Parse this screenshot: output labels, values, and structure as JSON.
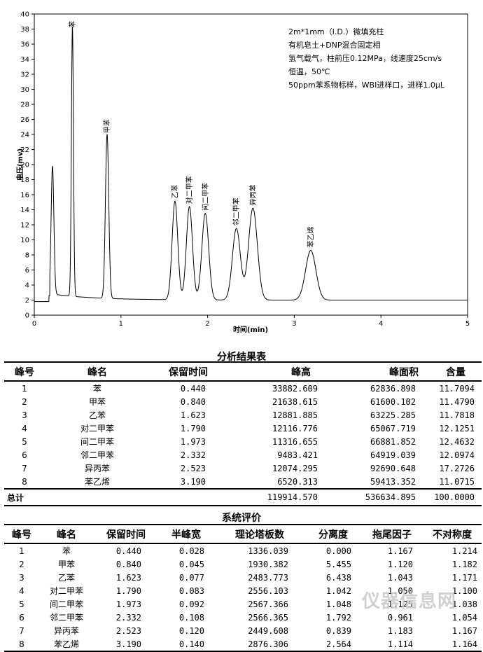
{
  "chart_data": {
    "type": "line",
    "xlabel": "时间(min)",
    "ylabel": "电压(mv)",
    "xlim": [
      0,
      5
    ],
    "ylim": [
      0,
      40
    ],
    "xticks": [
      0,
      1,
      2,
      3,
      4,
      5
    ],
    "yticks": [
      0,
      2,
      4,
      6,
      8,
      10,
      12,
      14,
      16,
      18,
      20,
      22,
      24,
      26,
      28,
      30,
      32,
      34,
      36,
      38,
      40
    ],
    "baseline": 2.0,
    "solvent_peak": {
      "rt": 0.21,
      "height": 19.0
    },
    "peaks": [
      {
        "name": "苯",
        "rt": 0.44,
        "height": 37.8
      },
      {
        "name": "甲苯",
        "rt": 0.84,
        "height": 23.8
      },
      {
        "name": "乙苯",
        "rt": 1.623,
        "height": 15.1
      },
      {
        "name": "对二甲苯",
        "rt": 1.79,
        "height": 14.4
      },
      {
        "name": "间二甲苯",
        "rt": 1.973,
        "height": 13.5
      },
      {
        "name": "邻二甲苯",
        "rt": 2.332,
        "height": 11.5
      },
      {
        "name": "异丙苯",
        "rt": 2.523,
        "height": 14.2
      },
      {
        "name": "苯乙烯",
        "rt": 3.19,
        "height": 8.6
      }
    ],
    "annotations": [
      "2m*1mm（I.D.）微填充柱",
      "有机皂土+DNP混合固定相",
      "氢气载气，柱前压0.12MPa，线速度25cm/s",
      "恒温，50℃",
      "50ppm苯系物标样，WBI进样口，进样1.0μL"
    ]
  },
  "table1": {
    "title": "分析结果表",
    "headers": [
      "峰号",
      "峰名",
      "保留时间",
      "峰高",
      "峰面积",
      "含量"
    ],
    "rows": [
      [
        "1",
        "苯",
        "0.440",
        "33882.609",
        "62836.898",
        "11.7094"
      ],
      [
        "2",
        "甲苯",
        "0.840",
        "21638.615",
        "61600.102",
        "11.4790"
      ],
      [
        "3",
        "乙苯",
        "1.623",
        "12881.885",
        "63225.285",
        "11.7818"
      ],
      [
        "4",
        "对二甲苯",
        "1.790",
        "12116.776",
        "65067.719",
        "12.1251"
      ],
      [
        "5",
        "间二甲苯",
        "1.973",
        "11316.655",
        "66881.852",
        "12.4632"
      ],
      [
        "6",
        "邻二甲苯",
        "2.332",
        "9483.421",
        "64919.039",
        "12.0974"
      ],
      [
        "7",
        "异丙苯",
        "2.523",
        "12074.295",
        "92690.648",
        "17.2726"
      ],
      [
        "8",
        "苯乙烯",
        "3.190",
        "6520.313",
        "59413.352",
        "11.0715"
      ]
    ],
    "total": {
      "label": "总计",
      "height": "119914.570",
      "area": "536634.895",
      "content": "100.0000"
    }
  },
  "table2": {
    "title": "系统评价",
    "headers": [
      "峰号",
      "峰名",
      "保留时间",
      "半峰宽",
      "理论塔板数",
      "分离度",
      "拖尾因子",
      "不对称度"
    ],
    "rows": [
      [
        "1",
        "苯",
        "0.440",
        "0.028",
        "1336.039",
        "0.000",
        "1.167",
        "1.214"
      ],
      [
        "2",
        "甲苯",
        "0.840",
        "0.045",
        "1930.382",
        "5.455",
        "1.120",
        "1.182"
      ],
      [
        "3",
        "乙苯",
        "1.623",
        "0.077",
        "2483.773",
        "6.438",
        "1.043",
        "1.171"
      ],
      [
        "4",
        "对二甲苯",
        "1.790",
        "0.083",
        "2556.103",
        "1.042",
        "1.050",
        "1.100"
      ],
      [
        "5",
        "间二甲苯",
        "1.973",
        "0.092",
        "2567.366",
        "1.048",
        "1.125",
        "1.038"
      ],
      [
        "6",
        "邻二甲苯",
        "2.332",
        "0.108",
        "2566.365",
        "1.792",
        "0.961",
        "1.054"
      ],
      [
        "7",
        "异丙苯",
        "2.523",
        "0.120",
        "2449.608",
        "0.839",
        "1.183",
        "1.167"
      ],
      [
        "8",
        "苯乙烯",
        "3.190",
        "0.140",
        "2876.306",
        "2.564",
        "1.114",
        "1.164"
      ]
    ]
  },
  "watermark": "仪器信息网"
}
